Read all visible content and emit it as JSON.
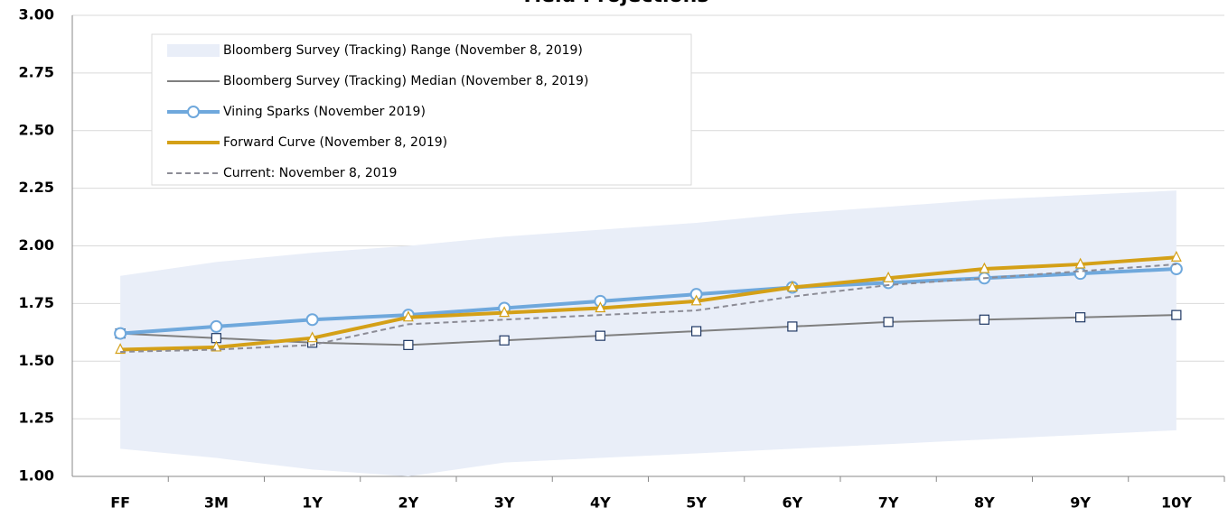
{
  "chart_data": {
    "type": "line",
    "title": "Yield Projections",
    "categories": [
      "FF",
      "3M",
      "1Y",
      "2Y",
      "3Y",
      "4Y",
      "5Y",
      "6Y",
      "7Y",
      "8Y",
      "9Y",
      "10Y"
    ],
    "ylim": [
      1,
      3
    ],
    "yticks": [
      {
        "value": 1,
        "label": "1.00"
      },
      {
        "value": 1.25,
        "label": "1.25"
      },
      {
        "value": 1.5,
        "label": "1.50"
      },
      {
        "value": 1.75,
        "label": "1.75"
      },
      {
        "value": 2,
        "label": "2.00"
      },
      {
        "value": 2.25,
        "label": "2.25"
      },
      {
        "value": 2.5,
        "label": "2.50"
      },
      {
        "value": 2.75,
        "label": "2.75"
      },
      {
        "value": 3,
        "label": "3.00"
      }
    ],
    "grid": true,
    "legend": "top-left",
    "series": [
      {
        "name": "Bloomberg Survey (Tracking) Range (November 8, 2019)",
        "color": "#e9eef8",
        "kind": "range",
        "low": [
          1.12,
          1.08,
          1.03,
          1.0,
          1.06,
          1.08,
          1.1,
          1.12,
          1.14,
          1.16,
          1.18,
          1.2
        ],
        "high": [
          1.87,
          1.93,
          1.97,
          2.0,
          2.04,
          2.07,
          2.1,
          2.14,
          2.17,
          2.2,
          2.22,
          2.24
        ]
      },
      {
        "name": "Bloomberg Survey (Tracking) Median (November 8, 2019)",
        "color": "#7f7f7f",
        "marker": "square",
        "values": [
          1.62,
          1.6,
          1.58,
          1.57,
          1.59,
          1.61,
          1.63,
          1.65,
          1.67,
          1.68,
          1.69,
          1.7
        ]
      },
      {
        "name": "Vining Sparks (November 2019)",
        "color": "#6fa8dc",
        "marker": "circle",
        "values": [
          1.62,
          1.65,
          1.68,
          1.7,
          1.73,
          1.76,
          1.79,
          1.82,
          1.84,
          1.86,
          1.88,
          1.9
        ]
      },
      {
        "name": "Forward Curve (November 8, 2019)",
        "color": "#d4a017",
        "marker": "triangle",
        "values": [
          1.55,
          1.56,
          1.6,
          1.69,
          1.71,
          1.73,
          1.76,
          1.82,
          1.86,
          1.9,
          1.92,
          1.95
        ]
      },
      {
        "name": "Current: November 8, 2019",
        "color": "#8c8c96",
        "dash": true,
        "values": [
          1.54,
          1.55,
          1.57,
          1.66,
          1.68,
          1.7,
          1.72,
          1.78,
          1.83,
          1.86,
          1.89,
          1.92
        ]
      }
    ]
  }
}
